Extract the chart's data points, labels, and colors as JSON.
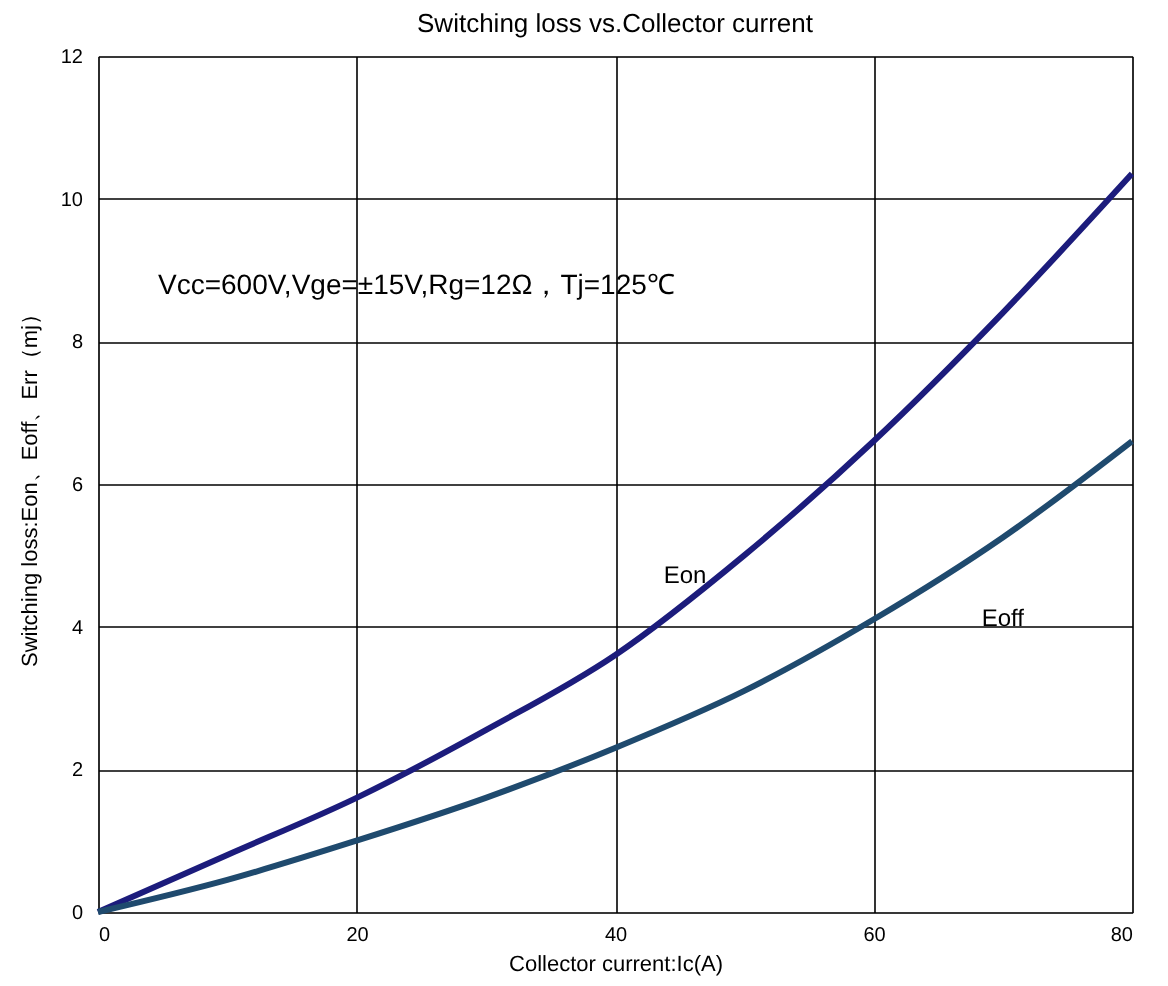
{
  "chart_data": {
    "type": "line",
    "title": "Switching loss vs.Collector current",
    "xlabel": "Collector current:Ic(A)",
    "ylabel": "Switching loss:Eon、Eoff、Err（mj）",
    "series": [
      {
        "name": "Eon",
        "color": "#1c1c7c",
        "x": [
          0,
          10,
          20,
          30,
          40,
          50,
          60,
          70,
          80
        ],
        "values": [
          0,
          0.8,
          1.6,
          2.55,
          3.6,
          5.0,
          6.6,
          8.4,
          10.35
        ]
      },
      {
        "name": "Eoff",
        "color": "#1f4a6e",
        "x": [
          0,
          10,
          20,
          30,
          40,
          50,
          60,
          70,
          80
        ],
        "values": [
          0,
          0.45,
          1.0,
          1.6,
          2.3,
          3.1,
          4.1,
          5.25,
          6.6
        ]
      }
    ],
    "annotations": [
      "Vcc=600V,Vge=±15V,Rg=12Ω，Tj=125℃"
    ],
    "xlim": [
      0,
      80
    ],
    "xticks": [
      0,
      20,
      40,
      60,
      80
    ],
    "ylim": [
      0,
      12
    ],
    "yticks": [
      0,
      2,
      4,
      6,
      8,
      10,
      12
    ],
    "grid": true,
    "marker": "none",
    "line_style": "solid"
  }
}
